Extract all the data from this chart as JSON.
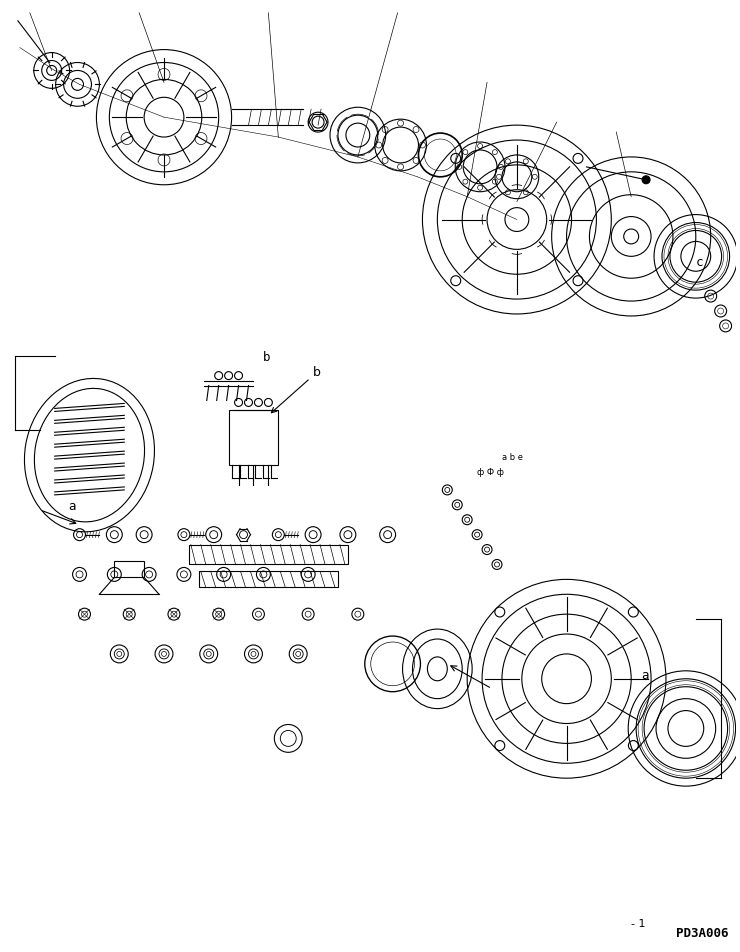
{
  "bg_color": "#ffffff",
  "line_color": "#000000",
  "line_width": 0.8,
  "fig_width": 7.4,
  "fig_height": 9.52,
  "watermark": "PD3A006",
  "labels": {
    "a_top": "a",
    "b_top": "b",
    "c_top": "c",
    "a_bot": "a",
    "b_bot": "b"
  }
}
